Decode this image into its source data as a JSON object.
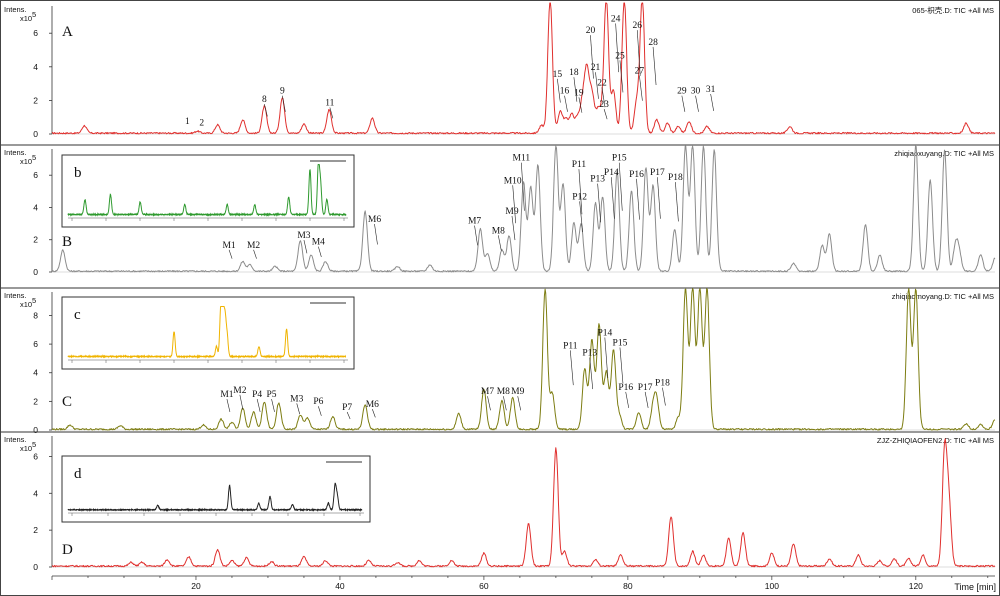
{
  "chart_data": {
    "type": "line",
    "xlabel": "Time [min]",
    "x_ticks": [
      20,
      40,
      60,
      80,
      100,
      120
    ],
    "xlim": [
      0,
      131
    ],
    "panels": [
      {
        "letter": "A",
        "header": "065-枳壳.D: TIC +All MS",
        "y_unit": "Intens.",
        "y_exp": "x10",
        "y_exp_power": "5",
        "ylim": [
          0,
          7.5
        ],
        "y_ticks": [
          "0",
          "2",
          "4",
          "6"
        ],
        "color": "#e0302e",
        "peaks": [
          [
            4.5,
            0.45
          ],
          [
            20.2,
            0.12
          ],
          [
            23,
            0.5
          ],
          [
            26.5,
            0.8
          ],
          [
            29.5,
            1.6
          ],
          [
            32,
            2.1
          ],
          [
            35,
            0.55
          ],
          [
            38.5,
            1.4
          ],
          [
            44.5,
            0.9
          ],
          [
            68,
            0.45
          ],
          [
            69.2,
            8.0
          ],
          [
            70.6,
            1.3
          ],
          [
            71.4,
            0.8
          ],
          [
            72.2,
            1.1
          ],
          [
            73,
            0.9
          ],
          [
            73.7,
            1.8
          ],
          [
            74.3,
            3.6
          ],
          [
            75,
            2.3
          ],
          [
            75.8,
            1.2
          ],
          [
            76.3,
            0.8
          ],
          [
            77,
            8.0
          ],
          [
            78,
            2.5
          ],
          [
            79.5,
            8.0
          ],
          [
            81.2,
            1.8
          ],
          [
            82,
            8.0
          ],
          [
            84,
            0.8
          ],
          [
            85.5,
            0.6
          ],
          [
            87,
            0.4
          ],
          [
            88.5,
            0.7
          ],
          [
            91,
            0.4
          ],
          [
            102.5,
            0.4
          ],
          [
            127,
            0.6
          ]
        ],
        "peak_labels": [
          {
            "text": "1",
            "x": 18.8,
            "y": 0.6
          },
          {
            "text": "2",
            "x": 20.8,
            "y": 0.5
          },
          {
            "text": "8",
            "x": 29.5,
            "y": 1.9
          },
          {
            "text": "9",
            "x": 32,
            "y": 2.4
          },
          {
            "text": "11",
            "x": 38.6,
            "y": 1.7
          },
          {
            "text": "15",
            "x": 70.2,
            "y": 3.4
          },
          {
            "text": "16",
            "x": 71.2,
            "y": 2.4
          },
          {
            "text": "18",
            "x": 72.5,
            "y": 3.5
          },
          {
            "text": "19",
            "x": 73.2,
            "y": 2.3
          },
          {
            "text": "20",
            "x": 74.8,
            "y": 6.0
          },
          {
            "text": "21",
            "x": 75.5,
            "y": 3.8
          },
          {
            "text": "22",
            "x": 76.4,
            "y": 2.9
          },
          {
            "text": "23",
            "x": 76.7,
            "y": 1.6
          },
          {
            "text": "24",
            "x": 78.3,
            "y": 6.7
          },
          {
            "text": "25",
            "x": 78.9,
            "y": 4.5
          },
          {
            "text": "26",
            "x": 81.3,
            "y": 6.3
          },
          {
            "text": "27",
            "x": 81.6,
            "y": 3.6
          },
          {
            "text": "28",
            "x": 83.5,
            "y": 5.3
          },
          {
            "text": "29",
            "x": 87.5,
            "y": 2.4
          },
          {
            "text": "30",
            "x": 89.4,
            "y": 2.4
          },
          {
            "text": "31",
            "x": 91.5,
            "y": 2.5
          }
        ]
      },
      {
        "letter": "B",
        "header": "zhiqiaoxuyang.D: TIC +All MS",
        "y_unit": "Intens.",
        "y_exp": "x10",
        "y_exp_power": "5",
        "ylim": [
          0,
          7.5
        ],
        "y_ticks": [
          "0",
          "2",
          "4",
          "6"
        ],
        "color": "#8c8c8c",
        "inset_label": "b",
        "inset_color": "#2f9a2f",
        "peaks": [
          [
            1.5,
            1.3
          ],
          [
            26.5,
            0.6
          ],
          [
            27.5,
            0.4
          ],
          [
            31,
            0.3
          ],
          [
            34.5,
            1.9
          ],
          [
            36,
            1.0
          ],
          [
            38,
            0.6
          ],
          [
            43.5,
            3.7
          ],
          [
            48,
            0.3
          ],
          [
            52.5,
            0.4
          ],
          [
            59.5,
            2.6
          ],
          [
            60.5,
            1.1
          ],
          [
            62.5,
            1.3
          ],
          [
            63.5,
            2.2
          ],
          [
            65.5,
            5.5
          ],
          [
            66.5,
            5.2
          ],
          [
            67.5,
            6.6
          ],
          [
            70,
            7.8
          ],
          [
            71,
            5.4
          ],
          [
            72.5,
            3.0
          ],
          [
            73.5,
            2.9
          ],
          [
            75.5,
            4.2
          ],
          [
            76.5,
            4.6
          ],
          [
            78.5,
            6.2
          ],
          [
            80.5,
            5.0
          ],
          [
            82.5,
            6.4
          ],
          [
            83.5,
            5.3
          ],
          [
            86.5,
            2.6
          ],
          [
            88,
            7.8
          ],
          [
            89,
            7.8
          ],
          [
            90.5,
            7.8
          ],
          [
            92,
            7.5
          ],
          [
            103,
            0.5
          ],
          [
            107,
            1.6
          ],
          [
            108,
            2.3
          ],
          [
            113,
            2.9
          ],
          [
            115,
            1.0
          ],
          [
            120,
            7.8
          ],
          [
            122,
            5.7
          ],
          [
            124,
            7.5
          ],
          [
            125.5,
            1.5
          ],
          [
            126,
            1.2
          ],
          [
            129,
            1.0
          ],
          [
            131,
            0.8
          ]
        ],
        "peak_labels": [
          {
            "text": "M1",
            "x": 24.6,
            "y": 1.5
          },
          {
            "text": "M2",
            "x": 28,
            "y": 1.5
          },
          {
            "text": "M3",
            "x": 35,
            "y": 2.1
          },
          {
            "text": "M4",
            "x": 37,
            "y": 1.7
          },
          {
            "text": "M6",
            "x": 44.8,
            "y": 3.1
          },
          {
            "text": "M7",
            "x": 58.7,
            "y": 3.0
          },
          {
            "text": "M8",
            "x": 62,
            "y": 2.4
          },
          {
            "text": "M9",
            "x": 63.9,
            "y": 3.6
          },
          {
            "text": "M10",
            "x": 64,
            "y": 5.5
          },
          {
            "text": "M11",
            "x": 65.2,
            "y": 6.9
          },
          {
            "text": "P11",
            "x": 73.2,
            "y": 6.5
          },
          {
            "text": "P12",
            "x": 73.3,
            "y": 4.5
          },
          {
            "text": "P13",
            "x": 75.8,
            "y": 5.6
          },
          {
            "text": "P14",
            "x": 77.7,
            "y": 6.0
          },
          {
            "text": "P15",
            "x": 78.8,
            "y": 6.9
          },
          {
            "text": "P16",
            "x": 81.2,
            "y": 5.9
          },
          {
            "text": "P17",
            "x": 84.1,
            "y": 6.0
          },
          {
            "text": "P18",
            "x": 86.6,
            "y": 5.7
          }
        ]
      },
      {
        "letter": "C",
        "header": "zhiqiaomoyang.D: TIC +All MS",
        "y_unit": "Intens.",
        "y_exp": "x10",
        "y_exp_power": "5",
        "ylim": [
          0,
          9.5
        ],
        "y_ticks": [
          "0",
          "2",
          "4",
          "6",
          "8"
        ],
        "color": "#7d7d12",
        "inset_label": "c",
        "inset_color": "#f0b400",
        "peaks": [
          [
            2.5,
            0.3
          ],
          [
            9.5,
            0.25
          ],
          [
            21,
            0.3
          ],
          [
            23.5,
            0.7
          ],
          [
            25,
            0.5
          ],
          [
            26.5,
            1.5
          ],
          [
            28,
            1.2
          ],
          [
            29.5,
            1.9
          ],
          [
            31.5,
            1.8
          ],
          [
            34.5,
            1.0
          ],
          [
            35.5,
            0.8
          ],
          [
            39,
            0.9
          ],
          [
            43.5,
            1.7
          ],
          [
            56.5,
            1.1
          ],
          [
            60,
            2.8
          ],
          [
            62.5,
            2.0
          ],
          [
            64,
            2.2
          ],
          [
            68.5,
            9.8
          ],
          [
            69.5,
            2.5
          ],
          [
            74,
            4.2
          ],
          [
            75,
            6.2
          ],
          [
            76,
            7.3
          ],
          [
            77,
            4.0
          ],
          [
            78,
            5.5
          ],
          [
            78.8,
            1.0
          ],
          [
            81.5,
            1.2
          ],
          [
            83.5,
            1.5
          ],
          [
            84,
            2.0
          ],
          [
            87,
            0.8
          ],
          [
            88,
            9.8
          ],
          [
            89,
            9.8
          ],
          [
            90,
            9.8
          ],
          [
            91,
            9.8
          ],
          [
            119,
            9.8
          ],
          [
            120,
            9.8
          ],
          [
            127,
            0.4
          ],
          [
            129,
            0.35
          ],
          [
            131,
            0.7
          ]
        ],
        "peak_labels": [
          {
            "text": "M1",
            "x": 24.3,
            "y": 2.3
          },
          {
            "text": "M2",
            "x": 26.1,
            "y": 2.6
          },
          {
            "text": "P4",
            "x": 28.5,
            "y": 2.3
          },
          {
            "text": "P5",
            "x": 30.5,
            "y": 2.3
          },
          {
            "text": "M3",
            "x": 34,
            "y": 2.0
          },
          {
            "text": "P6",
            "x": 37,
            "y": 1.8
          },
          {
            "text": "P7",
            "x": 41,
            "y": 1.4
          },
          {
            "text": "M6",
            "x": 44.5,
            "y": 1.6
          },
          {
            "text": "M7",
            "x": 60.5,
            "y": 2.5
          },
          {
            "text": "M8",
            "x": 62.7,
            "y": 2.5
          },
          {
            "text": "M9",
            "x": 64.7,
            "y": 2.5
          },
          {
            "text": "P11",
            "x": 72,
            "y": 5.7
          },
          {
            "text": "P13",
            "x": 74.7,
            "y": 5.2
          },
          {
            "text": "P14",
            "x": 76.8,
            "y": 6.6
          },
          {
            "text": "P15",
            "x": 78.9,
            "y": 5.9
          },
          {
            "text": "P16",
            "x": 79.7,
            "y": 2.8
          },
          {
            "text": "P17",
            "x": 82.4,
            "y": 2.8
          },
          {
            "text": "P18",
            "x": 84.8,
            "y": 3.1
          }
        ]
      },
      {
        "letter": "D",
        "header": "ZJZ-ZHIQIAOFEN2.D: TIC +All MS",
        "y_unit": "Intens.",
        "y_exp": "x10",
        "y_exp_power": "5",
        "ylim": [
          0,
          7
        ],
        "y_ticks": [
          "0",
          "2",
          "4",
          "6"
        ],
        "color": "#e0302e",
        "inset_label": "d",
        "inset_color": "#222222",
        "peaks": [
          [
            11,
            0.2
          ],
          [
            12.5,
            0.2
          ],
          [
            16,
            0.35
          ],
          [
            19,
            0.5
          ],
          [
            23,
            0.9
          ],
          [
            25,
            0.3
          ],
          [
            27,
            0.45
          ],
          [
            30.5,
            0.25
          ],
          [
            35,
            0.5
          ],
          [
            38,
            0.3
          ],
          [
            44,
            0.3
          ],
          [
            48,
            0.2
          ],
          [
            51,
            0.3
          ],
          [
            55.5,
            0.3
          ],
          [
            60,
            0.7
          ],
          [
            66.2,
            2.3
          ],
          [
            70,
            6.4
          ],
          [
            71.2,
            0.8
          ],
          [
            75.5,
            0.35
          ],
          [
            79,
            0.6
          ],
          [
            86,
            2.7
          ],
          [
            89,
            0.8
          ],
          [
            90.5,
            0.6
          ],
          [
            94,
            1.5
          ],
          [
            96,
            1.8
          ],
          [
            100,
            0.7
          ],
          [
            103,
            1.2
          ],
          [
            108,
            0.4
          ],
          [
            112,
            0.6
          ],
          [
            115,
            0.3
          ],
          [
            117,
            0.4
          ],
          [
            119,
            0.4
          ],
          [
            121,
            0.6
          ],
          [
            124,
            6.2
          ],
          [
            124.6,
            3.3
          ]
        ]
      }
    ]
  }
}
